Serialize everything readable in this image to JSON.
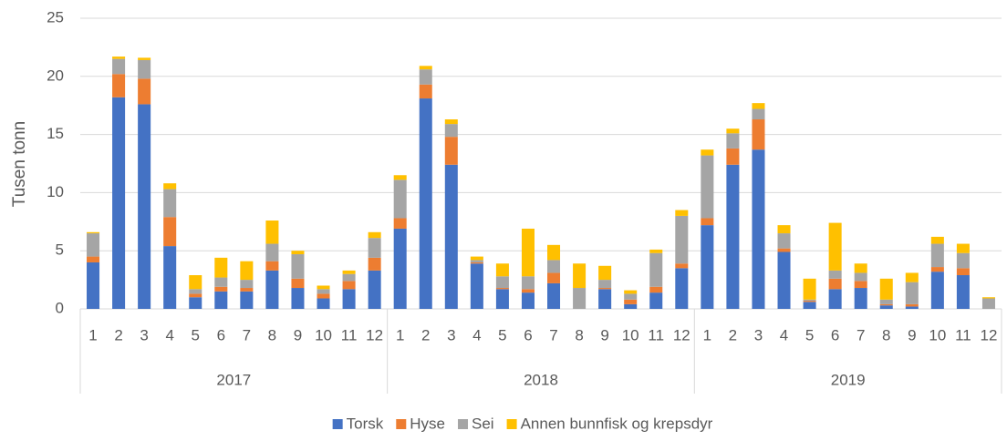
{
  "chart_data": {
    "type": "stacked_bar",
    "y_label": "Tusen tonn",
    "categories": [
      "1",
      "2",
      "3",
      "4",
      "5",
      "6",
      "7",
      "8",
      "9",
      "10",
      "11",
      "12",
      "1",
      "2",
      "3",
      "4",
      "5",
      "6",
      "7",
      "8",
      "9",
      "10",
      "11",
      "12",
      "1",
      "2",
      "3",
      "4",
      "5",
      "6",
      "7",
      "8",
      "9",
      "10",
      "11",
      "12"
    ],
    "groups": [
      "2017",
      "2018",
      "2019"
    ],
    "ylim": [
      0,
      25
    ],
    "yticks": [
      0,
      5,
      10,
      15,
      20,
      25
    ],
    "grid": true,
    "legend": "bottom",
    "series": [
      {
        "name": "Torsk",
        "color": "#4472c4",
        "values": [
          4.0,
          18.2,
          17.6,
          5.4,
          1.0,
          1.5,
          1.5,
          3.3,
          1.8,
          0.9,
          1.7,
          3.3,
          6.9,
          18.1,
          12.4,
          3.9,
          1.7,
          1.4,
          2.2,
          0,
          1.7,
          0.4,
          1.4,
          3.5,
          7.2,
          12.4,
          13.7,
          4.9,
          0.6,
          1.7,
          1.8,
          0.3,
          0.2,
          3.2,
          2.9,
          0
        ]
      },
      {
        "name": "Hyse",
        "color": "#ed7d31",
        "values": [
          0.5,
          2.0,
          2.2,
          2.5,
          0.3,
          0.4,
          0.3,
          0.8,
          0.8,
          0.4,
          0.7,
          1.1,
          0.9,
          1.2,
          2.4,
          0.1,
          0.1,
          0.3,
          0.9,
          0,
          0.1,
          0.4,
          0.5,
          0.4,
          0.6,
          1.4,
          2.6,
          0.3,
          0.1,
          0.9,
          0.6,
          0.1,
          0.2,
          0.4,
          0.6,
          0
        ]
      },
      {
        "name": "Sei",
        "color": "#a5a5a5",
        "values": [
          2.0,
          1.3,
          1.6,
          2.4,
          0.4,
          0.8,
          0.7,
          1.5,
          2.1,
          0.4,
          0.6,
          1.7,
          3.3,
          1.3,
          1.1,
          0.2,
          1.0,
          1.1,
          1.1,
          1.8,
          0.7,
          0.5,
          2.9,
          4.1,
          5.4,
          1.3,
          0.9,
          1.3,
          0.1,
          0.7,
          0.7,
          0.4,
          1.9,
          2.0,
          1.3,
          0.9
        ]
      },
      {
        "name": "Annen bunnfisk og krepsdyr",
        "color": "#ffc000",
        "values": [
          0.1,
          0.2,
          0.2,
          0.5,
          1.2,
          1.7,
          1.6,
          2.0,
          0.3,
          0.3,
          0.3,
          0.5,
          0.4,
          0.3,
          0.4,
          0.3,
          1.1,
          4.1,
          1.3,
          2.1,
          1.2,
          0.3,
          0.3,
          0.5,
          0.5,
          0.4,
          0.5,
          0.7,
          1.8,
          4.1,
          0.8,
          1.8,
          0.8,
          0.6,
          0.8,
          0.1
        ]
      }
    ]
  }
}
